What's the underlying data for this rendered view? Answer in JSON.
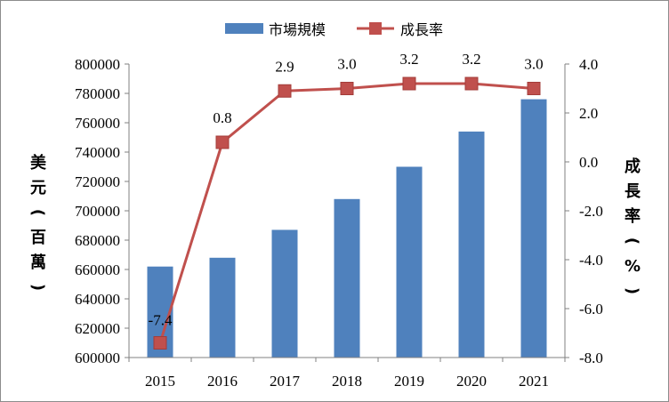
{
  "chart_data": {
    "type": "bar+line",
    "categories": [
      "2015",
      "2016",
      "2017",
      "2018",
      "2019",
      "2020",
      "2021"
    ],
    "series": [
      {
        "name": "市場規模",
        "type": "bar",
        "axis": "left",
        "color": "#4f81bd",
        "values": [
          662000,
          668000,
          687000,
          708000,
          730000,
          754000,
          776000
        ]
      },
      {
        "name": "成長率",
        "type": "line",
        "axis": "right",
        "color": "#c0504d",
        "values": [
          -7.4,
          0.8,
          2.9,
          3.0,
          3.2,
          3.2,
          3.0
        ],
        "labels": [
          "-7.4",
          "0.8",
          "2.9",
          "3.0",
          "3.2",
          "3.2",
          "3.0"
        ]
      }
    ],
    "left_axis": {
      "label": [
        "美",
        "元",
        "(",
        "百",
        "萬",
        ")"
      ],
      "ylim": [
        600000,
        800000
      ],
      "ticks": [
        "600000",
        "620000",
        "640000",
        "660000",
        "680000",
        "700000",
        "720000",
        "740000",
        "760000",
        "780000",
        "800000"
      ]
    },
    "right_axis": {
      "label": [
        "成",
        "長",
        "率",
        "(",
        "%",
        ")"
      ],
      "ylim": [
        -8,
        4
      ],
      "ticks": [
        "-8.0",
        "-6.0",
        "-4.0",
        "-2.0",
        "0.0",
        "2.0",
        "4.0"
      ]
    },
    "legend": {
      "position": "top-center",
      "entries": [
        "市場規模",
        "成長率"
      ]
    },
    "grid": false
  }
}
